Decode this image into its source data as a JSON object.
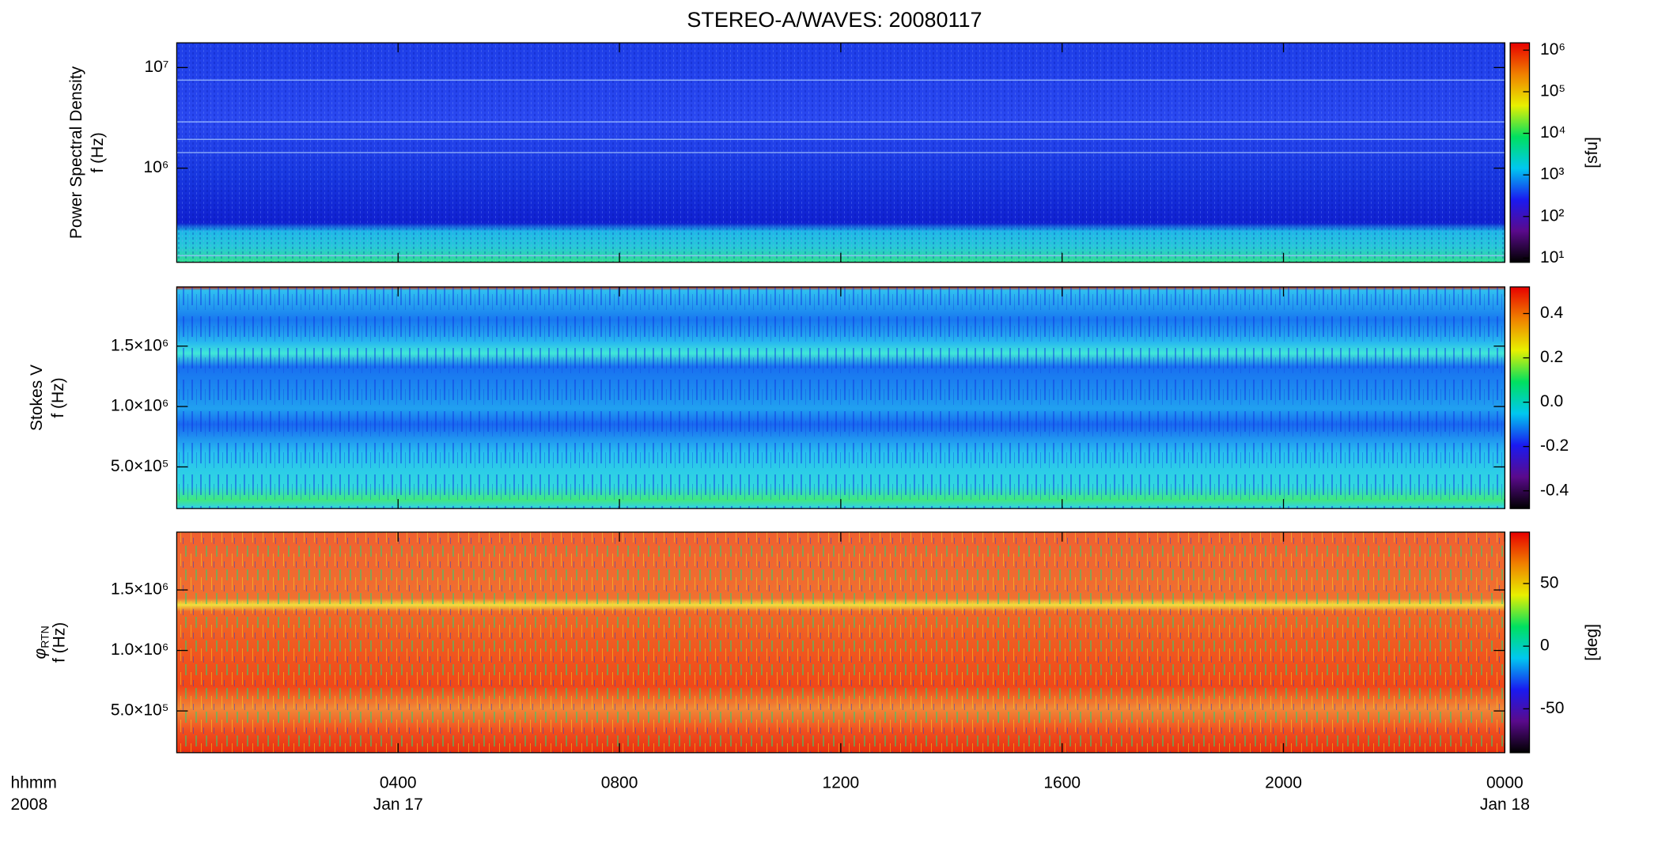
{
  "title": "STEREO-A/WAVES: 20080117",
  "x_axis": {
    "xlim": [
      0,
      24
    ],
    "xticks": [
      {
        "value": 4,
        "label": "0400"
      },
      {
        "value": 8,
        "label": "0800"
      },
      {
        "value": 12,
        "label": "1200"
      },
      {
        "value": 16,
        "label": "1600"
      },
      {
        "value": 20,
        "label": "2000"
      },
      {
        "value": 24,
        "label": "0000"
      }
    ],
    "date_labels": [
      {
        "value": 4,
        "label": "Jan 17"
      },
      {
        "value": 24,
        "label": "Jan 18"
      }
    ],
    "unit_label": "hhmm",
    "year_label": "2008"
  },
  "colormap": [
    "#000000",
    "#5a0a8c",
    "#1a1af0",
    "#00c8f0",
    "#00e060",
    "#e8f000",
    "#f08000",
    "#e80000"
  ],
  "chart_data": [
    {
      "type": "heatmap",
      "ylabel": "Power Spectral Density",
      "ylabel2": "f (Hz)",
      "ylog": true,
      "ylim": [
        116000,
        17600000
      ],
      "yticks": [
        {
          "value": 1000000,
          "label": "10⁶"
        },
        {
          "value": 10000000,
          "label": "10⁷"
        }
      ],
      "clog": true,
      "clim": [
        7.9,
        1500000
      ],
      "cticks": [
        {
          "value": 10,
          "label": "10¹"
        },
        {
          "value": 100,
          "label": "10²"
        },
        {
          "value": 1000,
          "label": "10³"
        },
        {
          "value": 10000,
          "label": "10⁴"
        },
        {
          "value": 100000,
          "label": "10⁵"
        },
        {
          "value": 1000000,
          "label": "10⁶"
        }
      ],
      "clabel": "[sfu]"
    },
    {
      "type": "heatmap",
      "ylabel": "Stokes V",
      "ylabel2": "f (Hz)",
      "ylog": false,
      "ylim": [
        155000,
        1990000
      ],
      "yticks": [
        {
          "value": 500000,
          "label": "5.0×10⁵"
        },
        {
          "value": 1000000,
          "label": "1.0×10⁶"
        },
        {
          "value": 1500000,
          "label": "1.5×10⁶"
        }
      ],
      "clog": false,
      "clim": [
        -0.48,
        0.52
      ],
      "cticks": [
        -0.4,
        -0.2,
        {
          "value": 0,
          "label": "0.0"
        },
        0.2,
        0.4
      ]
    },
    {
      "type": "heatmap",
      "ylabel": "φ",
      "ylabel_sub": "RTN",
      "ylabel2": "f (Hz)",
      "ylog": false,
      "ylim": [
        155000,
        1978000
      ],
      "yticks": [
        {
          "value": 500000,
          "label": "5.0×10⁵"
        },
        {
          "value": 1000000,
          "label": "1.0×10⁶"
        },
        {
          "value": 1500000,
          "label": "1.5×10⁶"
        }
      ],
      "clog": false,
      "clim": [
        -85,
        91
      ],
      "cticks": [
        -50,
        0,
        50
      ],
      "clabel": "[deg]"
    }
  ]
}
